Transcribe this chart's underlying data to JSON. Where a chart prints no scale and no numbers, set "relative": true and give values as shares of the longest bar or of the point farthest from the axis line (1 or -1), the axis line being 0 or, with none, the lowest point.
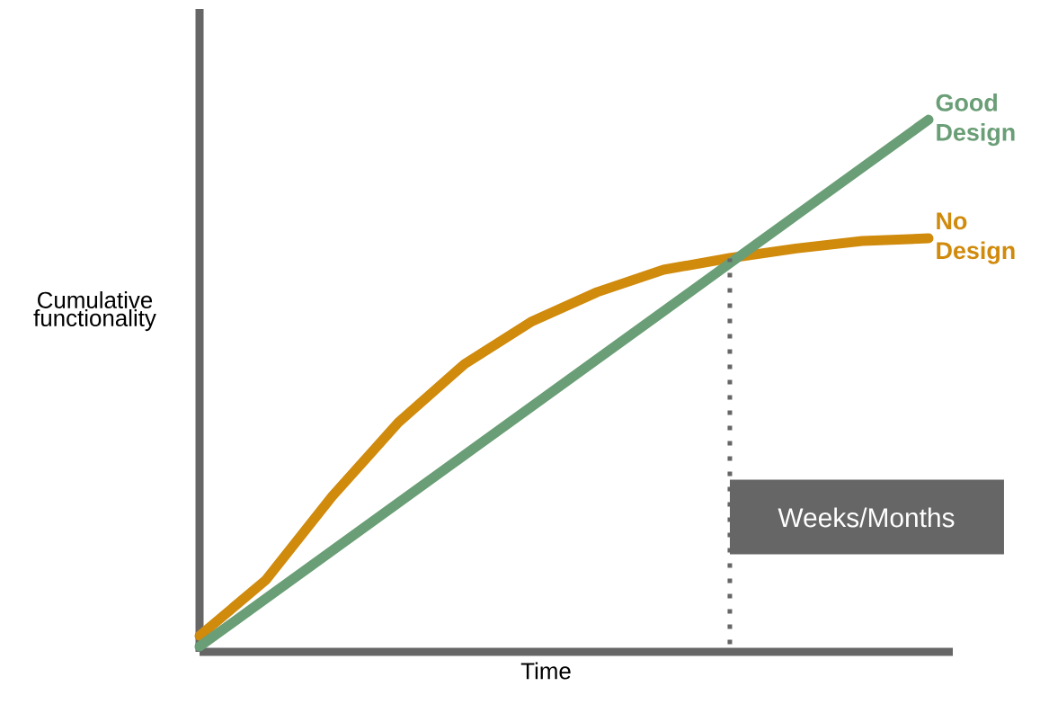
{
  "chart_data": {
    "type": "line",
    "relative": true,
    "xlabel": "Time",
    "ylabel": "Cumulative functionality",
    "categories": [
      null,
      null,
      null,
      null,
      null,
      null,
      null,
      null,
      null,
      null,
      null,
      null
    ],
    "legend": false,
    "marker": "none",
    "line_style": "solid",
    "series": [
      {
        "name": "No Design",
        "color": "#d08a0c",
        "values": [
          0.03,
          0.135,
          0.292,
          0.431,
          0.541,
          0.62,
          0.676,
          0.718,
          0.74,
          0.758,
          0.772,
          0.777
        ]
      },
      {
        "name": "Good Design",
        "color": "#6a9e76",
        "values": [
          0.01,
          0.1,
          0.19,
          0.28,
          0.37,
          0.46,
          0.55,
          0.64,
          0.73,
          0.82,
          0.91,
          1
        ]
      }
    ],
    "annotations": [
      "Weeks/Months"
    ]
  }
}
